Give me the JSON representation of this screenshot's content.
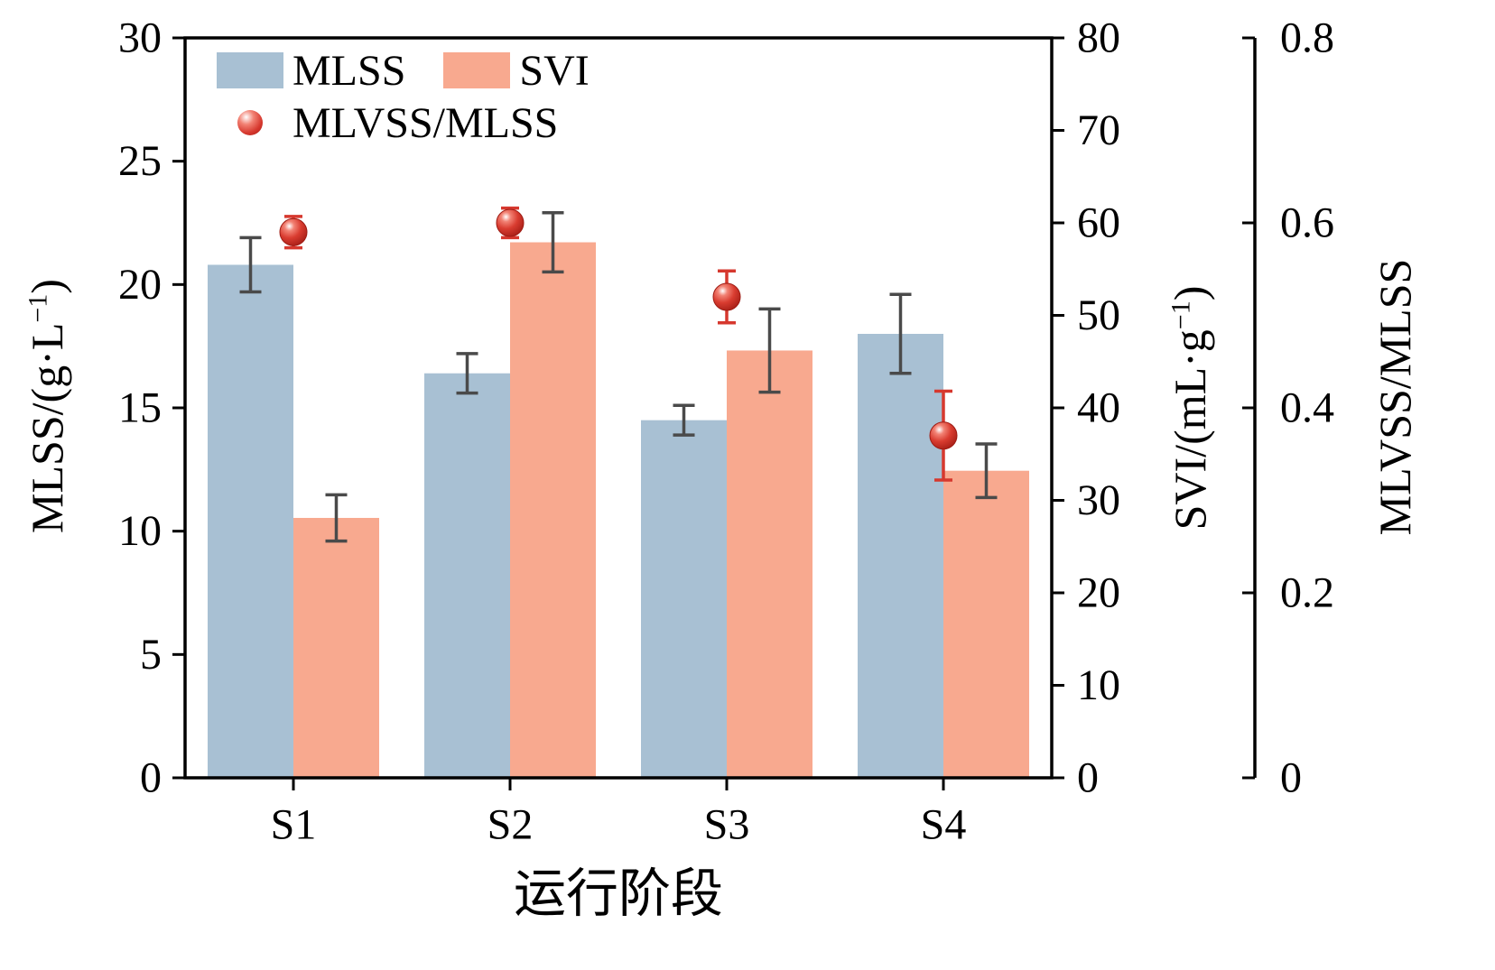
{
  "chart_data": {
    "type": "bar",
    "categories": [
      "S1",
      "S2",
      "S3",
      "S4"
    ],
    "x_title": "运行阶段",
    "axes": {
      "left": {
        "title_pre": "MLSS/(g·L",
        "title_sup": "−1",
        "title_post": ")",
        "min": 0,
        "max": 30,
        "ticks": [
          0,
          5,
          10,
          15,
          20,
          25,
          30
        ],
        "tick_labels": [
          "0",
          "5",
          "10",
          "15",
          "20",
          "25",
          "30"
        ]
      },
      "svi": {
        "title_pre": "SVI/(mL·g",
        "title_sup": "−1",
        "title_post": ")",
        "min": 0,
        "max": 80,
        "ticks": [
          0,
          10,
          20,
          30,
          40,
          50,
          60,
          70,
          80
        ],
        "tick_labels": [
          "0",
          "10",
          "20",
          "30",
          "40",
          "50",
          "60",
          "70",
          "80"
        ]
      },
      "ratio": {
        "title": "MLVSS/MLSS",
        "min": 0,
        "max": 0.8,
        "ticks": [
          0,
          0.2,
          0.4,
          0.6,
          0.8
        ],
        "tick_labels": [
          "0",
          "0.2",
          "0.4",
          "0.6",
          "0.8"
        ]
      }
    },
    "series": [
      {
        "name": "MLSS",
        "kind": "bar",
        "axis": "left",
        "color": "#A8C0D3",
        "values": [
          20.8,
          16.4,
          14.5,
          18.0
        ],
        "errors": [
          1.1,
          0.8,
          0.6,
          1.6
        ]
      },
      {
        "name": "SVI",
        "kind": "bar",
        "axis": "svi",
        "color": "#F8A98F",
        "values": [
          28.1,
          57.9,
          46.2,
          33.2
        ],
        "errors": [
          2.5,
          3.2,
          4.5,
          2.9
        ]
      },
      {
        "name": "MLVSS/MLSS",
        "kind": "scatter",
        "axis": "ratio",
        "color": "#D6382E",
        "values": [
          0.59,
          0.6,
          0.52,
          0.37
        ],
        "errors": [
          0.017,
          0.016,
          0.028,
          0.048
        ]
      }
    ],
    "error_bar_color": "#4A4A4A",
    "grid": "off",
    "legend_position": "top-left-inside"
  },
  "legend": {
    "items": [
      {
        "label": "MLSS",
        "marker": "square",
        "color": "#A8C0D3"
      },
      {
        "label": "SVI",
        "marker": "square",
        "color": "#F8A98F"
      },
      {
        "label": "MLVSS/MLSS",
        "marker": "sphere",
        "color": "#D6382E"
      }
    ]
  }
}
